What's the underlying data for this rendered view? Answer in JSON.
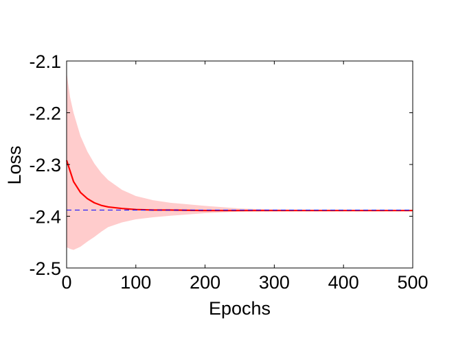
{
  "chart_data": {
    "type": "line",
    "title": "",
    "xlabel": "Epochs",
    "ylabel": "Loss",
    "xlim": [
      0,
      500
    ],
    "ylim": [
      -2.5,
      -2.1
    ],
    "xticks": [
      0,
      100,
      200,
      300,
      400,
      500
    ],
    "xtick_labels": [
      "0",
      "100",
      "200",
      "300",
      "400",
      "500"
    ],
    "yticks": [
      -2.1,
      -2.2,
      -2.3,
      -2.4,
      -2.5
    ],
    "ytick_labels": [
      "-2.1",
      "-2.2",
      "-2.3",
      "-2.4",
      "-2.5"
    ],
    "grid": false,
    "legend": "none",
    "series": [
      {
        "style": "solid",
        "color": "#ff0000",
        "x": [
          0,
          10,
          20,
          30,
          40,
          50,
          60,
          80,
          100,
          125,
          150,
          200,
          250,
          300,
          400,
          500
        ],
        "y": [
          -2.292,
          -2.333,
          -2.354,
          -2.366,
          -2.374,
          -2.379,
          -2.382,
          -2.385,
          -2.387,
          -2.388,
          -2.388,
          -2.389,
          -2.389,
          -2.389,
          -2.389,
          -2.389
        ]
      },
      {
        "style": "dashed",
        "color": "#0000ff",
        "x": [
          0,
          500
        ],
        "y": [
          -2.388,
          -2.388
        ]
      }
    ],
    "band": {
      "color": "#ffcccc",
      "x": [
        0,
        5,
        10,
        20,
        30,
        40,
        50,
        60,
        80,
        100,
        125,
        150,
        200,
        250,
        300,
        400,
        500
      ],
      "upper": [
        -2.122,
        -2.17,
        -2.2,
        -2.245,
        -2.275,
        -2.298,
        -2.316,
        -2.33,
        -2.349,
        -2.361,
        -2.369,
        -2.374,
        -2.38,
        -2.385,
        -2.387,
        -2.388,
        -2.388
      ],
      "lower": [
        -2.46,
        -2.463,
        -2.465,
        -2.459,
        -2.449,
        -2.44,
        -2.43,
        -2.421,
        -2.412,
        -2.406,
        -2.402,
        -2.399,
        -2.394,
        -2.391,
        -2.39,
        -2.39,
        -2.39
      ]
    }
  }
}
